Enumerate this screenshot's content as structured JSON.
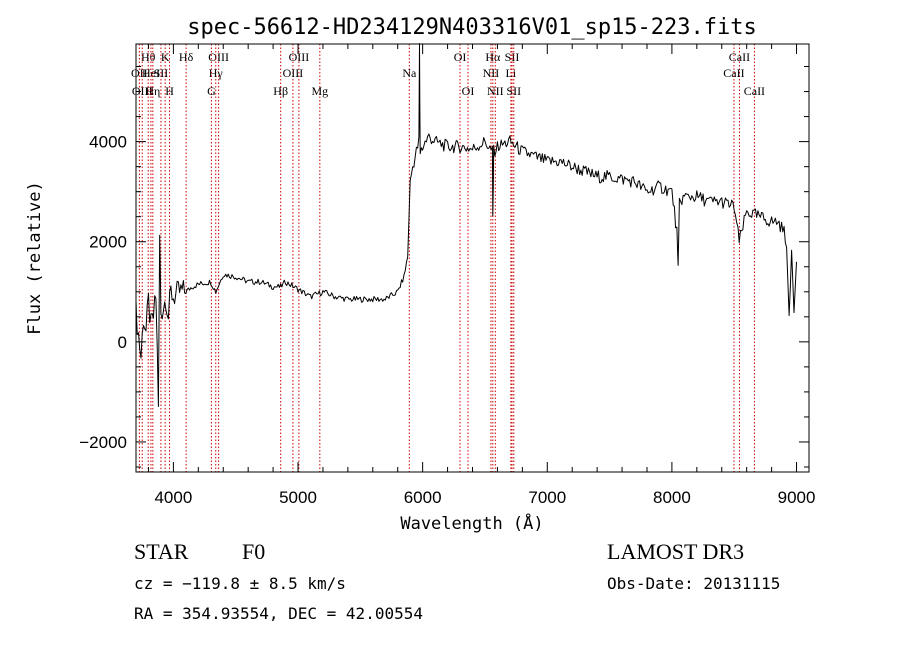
{
  "chart_data": {
    "type": "line",
    "title": "spec-56612-HD234129N403316V01_sp15-223.fits",
    "xlabel": "Wavelength (Å)",
    "ylabel": "Flux (relative)",
    "xlim": [
      3700,
      9100
    ],
    "ylim": [
      -2600,
      5950
    ],
    "x_ticks": [
      4000,
      5000,
      6000,
      7000,
      8000,
      9000
    ],
    "x_tick_labels": [
      "4000",
      "5000",
      "6000",
      "7000",
      "8000",
      "9000"
    ],
    "y_ticks": [
      -2000,
      0,
      2000,
      4000
    ],
    "y_tick_labels": [
      "−2000",
      "0",
      "2000",
      "4000"
    ],
    "series": [
      {
        "x": [
          3700,
          3740,
          3760,
          3780,
          3800,
          3820,
          3840,
          3860,
          3880,
          3890,
          3900,
          3920,
          3940,
          3960,
          3980,
          4000,
          4050,
          4100,
          4150,
          4200,
          4300,
          4340,
          4400,
          4500,
          4600,
          4700,
          4800,
          4861,
          4900,
          5000,
          5100,
          5200,
          5300,
          5400,
          5500,
          5600,
          5700,
          5800,
          5850,
          5880,
          5900,
          5920,
          5950,
          5970,
          5975,
          5980,
          6000,
          6050,
          6100,
          6200,
          6300,
          6400,
          6500,
          6560,
          6563,
          6570,
          6600,
          6700,
          6800,
          6900,
          7000,
          7100,
          7200,
          7300,
          7400,
          7500,
          7600,
          7700,
          7800,
          7900,
          8000,
          8040,
          8050,
          8060,
          8100,
          8200,
          8300,
          8400,
          8500,
          8540,
          8600,
          8700,
          8800,
          8850,
          8900,
          8920,
          8940,
          8960,
          8980,
          9000
        ],
        "y": [
          600,
          -300,
          500,
          200,
          800,
          300,
          500,
          900,
          -1200,
          2100,
          600,
          700,
          900,
          500,
          1000,
          900,
          1000,
          1000,
          1100,
          1150,
          1200,
          1000,
          1350,
          1300,
          1200,
          1200,
          1100,
          1100,
          1200,
          1050,
          900,
          1000,
          900,
          850,
          850,
          850,
          850,
          1000,
          1300,
          1700,
          3200,
          3500,
          3800,
          4000,
          5900,
          3800,
          3900,
          4100,
          4000,
          3900,
          3900,
          3850,
          4000,
          3800,
          2500,
          3800,
          3900,
          4000,
          3800,
          3700,
          3600,
          3600,
          3500,
          3400,
          3300,
          3300,
          3250,
          3200,
          3000,
          3100,
          3000,
          2200,
          1400,
          2800,
          2900,
          2900,
          2800,
          2800,
          2700,
          2000,
          2600,
          2500,
          2400,
          2400,
          2200,
          2000,
          400,
          1800,
          700,
          1600
        ],
        "color": "#000000"
      }
    ],
    "lines": [
      {
        "label": "Hθ",
        "x": 3798,
        "row": 1
      },
      {
        "label": "OII",
        "x": 3727,
        "row": 2
      },
      {
        "label": "OIII",
        "x": 3750,
        "row": 3
      },
      {
        "label": "K",
        "x": 3934,
        "row": 1
      },
      {
        "label": "HeI",
        "x": 3820,
        "row": 2
      },
      {
        "label": "SII",
        "x": 3900,
        "row": 2
      },
      {
        "label": "Hη",
        "x": 3835,
        "row": 3
      },
      {
        "label": "H",
        "x": 3969,
        "row": 3
      },
      {
        "label": "Hδ",
        "x": 4102,
        "row": 1
      },
      {
        "label": "OIII",
        "x": 4363,
        "row": 1
      },
      {
        "label": "Hγ",
        "x": 4340,
        "row": 2
      },
      {
        "label": "G",
        "x": 4305,
        "row": 3
      },
      {
        "label": "OIII",
        "x": 5007,
        "row": 1
      },
      {
        "label": "OIII",
        "x": 4959,
        "row": 2
      },
      {
        "label": "Hβ",
        "x": 4861,
        "row": 3
      },
      {
        "label": "Mg",
        "x": 5175,
        "row": 3
      },
      {
        "label": "Na",
        "x": 5893,
        "row": 2
      },
      {
        "label": "OI",
        "x": 6300,
        "row": 1
      },
      {
        "label": "OI",
        "x": 6364,
        "row": 3
      },
      {
        "label": "Hα",
        "x": 6563,
        "row": 1
      },
      {
        "label": "SII",
        "x": 6717,
        "row": 1
      },
      {
        "label": "NII",
        "x": 6548,
        "row": 2
      },
      {
        "label": "Li",
        "x": 6708,
        "row": 2
      },
      {
        "label": "NII",
        "x": 6583,
        "row": 3
      },
      {
        "label": "SII",
        "x": 6731,
        "row": 3
      },
      {
        "label": "CaII",
        "x": 8542,
        "row": 1
      },
      {
        "label": "CaII",
        "x": 8498,
        "row": 2
      },
      {
        "label": "CaII",
        "x": 8662,
        "row": 3
      }
    ],
    "line_color": "#cc0000",
    "grid": false,
    "legend": "none"
  },
  "info": {
    "object_class": "STAR",
    "subclass": "F0",
    "survey": "LAMOST DR3",
    "cz": "cz = −119.8 ± 8.5 km/s",
    "obs_date": "Obs-Date: 20131115",
    "coords": "RA = 354.93554, DEC =  42.00554"
  }
}
